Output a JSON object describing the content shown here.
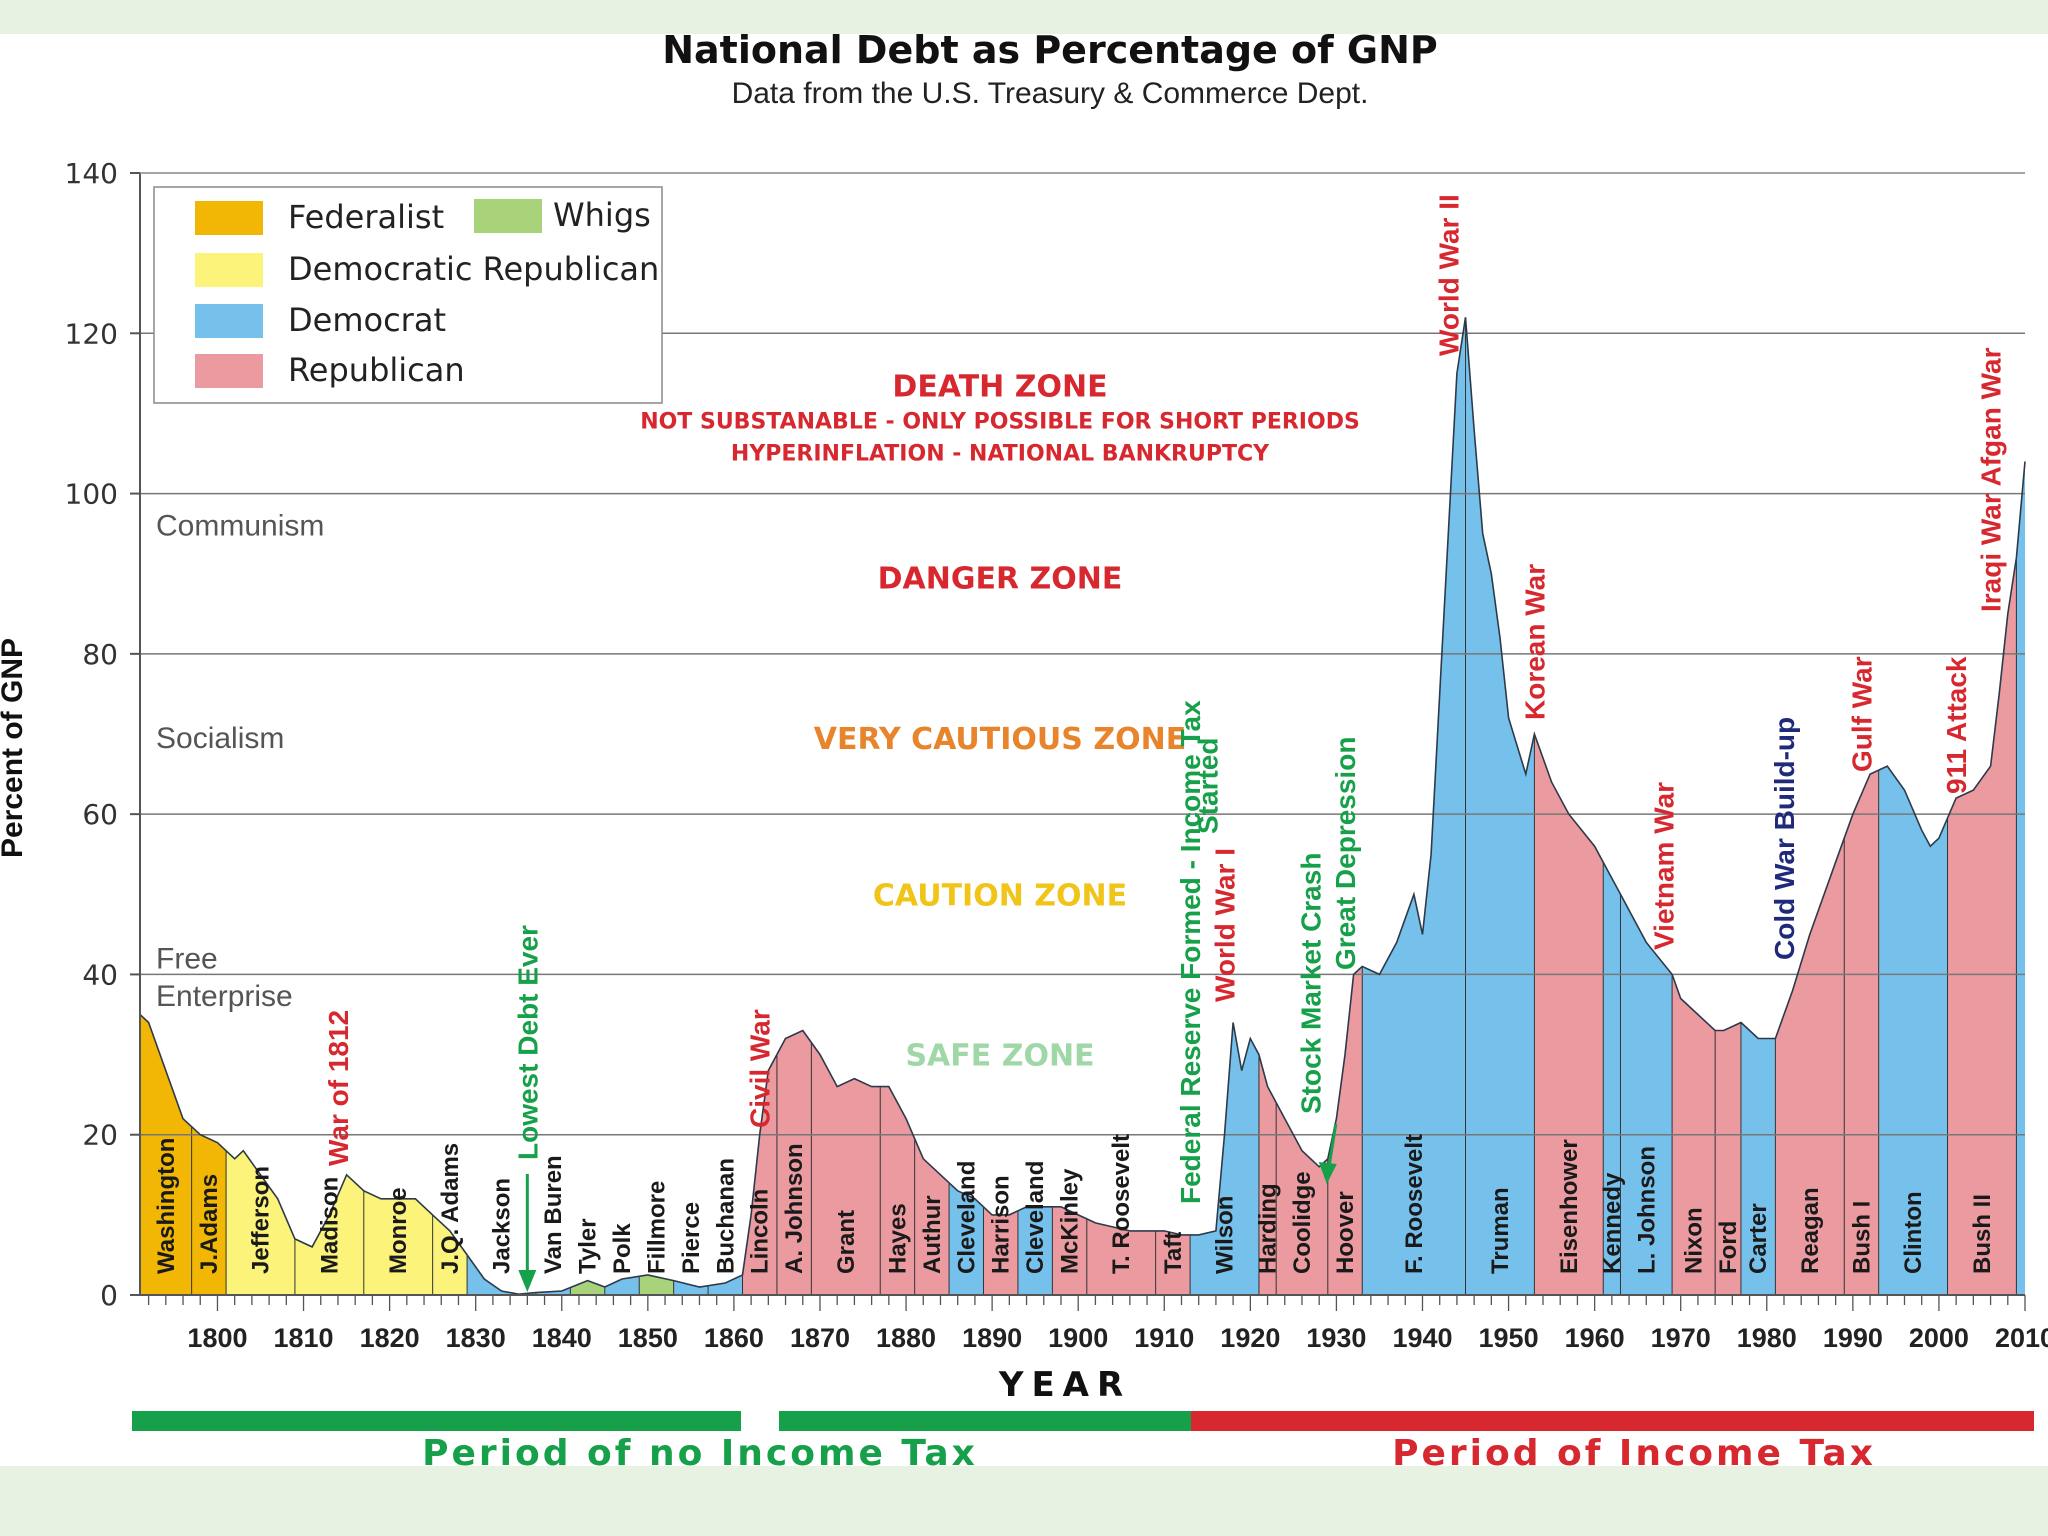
{
  "colors": {
    "federalist": "#f2b705",
    "dem_republican": "#fbf37a",
    "democrat": "#76c1ec",
    "republican": "#eb9aa0",
    "whigs": "#a8d37a",
    "danger_red": "#d7282f",
    "orange": "#e8842c",
    "caution_yellow": "#f0c419",
    "safe_green": "#9fd7a6",
    "event_green": "#16a049",
    "event_navy": "#1f2a7a"
  },
  "chart_data": {
    "type": "area",
    "title": "National Debt as Percentage of GNP",
    "subtitle": "Data from the U.S. Treasury & Commerce Dept.",
    "xlabel": "YEAR",
    "ylabel": "Percent of GNP",
    "xlim": [
      1791,
      2010
    ],
    "ylim": [
      0,
      140
    ],
    "x_ticks": [
      1800,
      1810,
      1820,
      1830,
      1840,
      1850,
      1860,
      1870,
      1880,
      1890,
      1900,
      1910,
      1920,
      1930,
      1940,
      1950,
      1960,
      1970,
      1980,
      1990,
      2000,
      "2010"
    ],
    "y_ticks": [
      0,
      20,
      40,
      60,
      80,
      100,
      120,
      140
    ],
    "grid": "horizontal",
    "legend_position": "top-left",
    "legend": [
      {
        "label": "Federalist",
        "color_key": "federalist"
      },
      {
        "label": "Whigs",
        "color_key": "whigs"
      },
      {
        "label": "Democratic Republican",
        "color_key": "dem_republican"
      },
      {
        "label": "Democrat",
        "color_key": "democrat"
      },
      {
        "label": "Republican",
        "color_key": "republican"
      }
    ],
    "series": [
      {
        "points": [
          [
            1791,
            35
          ],
          [
            1792,
            34
          ],
          [
            1794,
            28
          ],
          [
            1796,
            22
          ],
          [
            1798,
            20
          ],
          [
            1800,
            19
          ],
          [
            1802,
            17
          ],
          [
            1803,
            18
          ],
          [
            1805,
            15
          ],
          [
            1807,
            12
          ],
          [
            1809,
            7
          ],
          [
            1811,
            6
          ],
          [
            1813,
            10
          ],
          [
            1815,
            15
          ],
          [
            1817,
            13
          ],
          [
            1819,
            12
          ],
          [
            1821,
            12
          ],
          [
            1823,
            12
          ],
          [
            1825,
            10
          ],
          [
            1827,
            8
          ],
          [
            1829,
            5
          ],
          [
            1831,
            2
          ],
          [
            1833,
            0.5
          ],
          [
            1835,
            0.1
          ],
          [
            1837,
            0.3
          ],
          [
            1840,
            0.5
          ],
          [
            1843,
            1.8
          ],
          [
            1845,
            1
          ],
          [
            1847,
            2
          ],
          [
            1850,
            2.5
          ],
          [
            1853,
            1.8
          ],
          [
            1856,
            1
          ],
          [
            1859,
            1.5
          ],
          [
            1861,
            2.5
          ],
          [
            1862,
            10
          ],
          [
            1863,
            20
          ],
          [
            1864,
            28
          ],
          [
            1866,
            32
          ],
          [
            1868,
            33
          ],
          [
            1870,
            30
          ],
          [
            1872,
            26
          ],
          [
            1874,
            27
          ],
          [
            1876,
            26
          ],
          [
            1878,
            26
          ],
          [
            1880,
            22
          ],
          [
            1882,
            17
          ],
          [
            1884,
            15
          ],
          [
            1886,
            13
          ],
          [
            1888,
            12
          ],
          [
            1890,
            10
          ],
          [
            1892,
            10
          ],
          [
            1894,
            11
          ],
          [
            1896,
            11
          ],
          [
            1898,
            11
          ],
          [
            1900,
            10
          ],
          [
            1902,
            9
          ],
          [
            1904,
            8.5
          ],
          [
            1906,
            8
          ],
          [
            1908,
            8
          ],
          [
            1910,
            8
          ],
          [
            1912,
            7.5
          ],
          [
            1914,
            7.5
          ],
          [
            1916,
            8
          ],
          [
            1917,
            20
          ],
          [
            1918,
            34
          ],
          [
            1919,
            28
          ],
          [
            1920,
            32
          ],
          [
            1921,
            30
          ],
          [
            1922,
            26
          ],
          [
            1924,
            22
          ],
          [
            1926,
            18
          ],
          [
            1928,
            16
          ],
          [
            1929,
            17
          ],
          [
            1930,
            22
          ],
          [
            1931,
            30
          ],
          [
            1932,
            40
          ],
          [
            1933,
            41
          ],
          [
            1935,
            40
          ],
          [
            1937,
            44
          ],
          [
            1939,
            50
          ],
          [
            1940,
            45
          ],
          [
            1941,
            55
          ],
          [
            1942,
            75
          ],
          [
            1943,
            95
          ],
          [
            1944,
            115
          ],
          [
            1945,
            122
          ],
          [
            1946,
            108
          ],
          [
            1947,
            95
          ],
          [
            1948,
            90
          ],
          [
            1949,
            82
          ],
          [
            1950,
            72
          ],
          [
            1952,
            65
          ],
          [
            1953,
            70
          ],
          [
            1955,
            64
          ],
          [
            1957,
            60
          ],
          [
            1960,
            56
          ],
          [
            1963,
            50
          ],
          [
            1966,
            44
          ],
          [
            1969,
            40
          ],
          [
            1970,
            37
          ],
          [
            1972,
            35
          ],
          [
            1974,
            33
          ],
          [
            1975,
            33
          ],
          [
            1977,
            34
          ],
          [
            1979,
            32
          ],
          [
            1981,
            32
          ],
          [
            1983,
            38
          ],
          [
            1985,
            45
          ],
          [
            1988,
            54
          ],
          [
            1990,
            60
          ],
          [
            1992,
            65
          ],
          [
            1994,
            66
          ],
          [
            1996,
            63
          ],
          [
            1998,
            58
          ],
          [
            1999,
            56
          ],
          [
            2000,
            57
          ],
          [
            2002,
            62
          ],
          [
            2004,
            63
          ],
          [
            2006,
            66
          ],
          [
            2007,
            75
          ],
          [
            2008,
            85
          ],
          [
            2009,
            92
          ],
          [
            2010,
            104
          ]
        ]
      }
    ],
    "party_eras": [
      {
        "start": 1789,
        "end": 1797,
        "party": "federalist",
        "president": "Washington"
      },
      {
        "start": 1797,
        "end": 1801,
        "party": "federalist",
        "president": "J.Adams"
      },
      {
        "start": 1801,
        "end": 1809,
        "party": "dem_republican",
        "president": "Jefferson"
      },
      {
        "start": 1809,
        "end": 1817,
        "party": "dem_republican",
        "president": "Madison"
      },
      {
        "start": 1817,
        "end": 1825,
        "party": "dem_republican",
        "president": "Monroe"
      },
      {
        "start": 1825,
        "end": 1829,
        "party": "dem_republican",
        "president": "J.Q. Adams"
      },
      {
        "start": 1829,
        "end": 1837,
        "party": "democrat",
        "president": "Jackson"
      },
      {
        "start": 1837,
        "end": 1841,
        "party": "democrat",
        "president": "Van Buren"
      },
      {
        "start": 1841,
        "end": 1845,
        "party": "whigs",
        "president": "Tyler"
      },
      {
        "start": 1845,
        "end": 1849,
        "party": "democrat",
        "president": "Polk"
      },
      {
        "start": 1849,
        "end": 1853,
        "party": "whigs",
        "president": "Fillmore"
      },
      {
        "start": 1853,
        "end": 1857,
        "party": "democrat",
        "president": "Pierce"
      },
      {
        "start": 1857,
        "end": 1861,
        "party": "democrat",
        "president": "Buchanan"
      },
      {
        "start": 1861,
        "end": 1865,
        "party": "republican",
        "president": "Lincoln"
      },
      {
        "start": 1865,
        "end": 1869,
        "party": "republican",
        "president": "A. Johnson"
      },
      {
        "start": 1869,
        "end": 1877,
        "party": "republican",
        "president": "Grant"
      },
      {
        "start": 1877,
        "end": 1881,
        "party": "republican",
        "president": "Hayes"
      },
      {
        "start": 1881,
        "end": 1885,
        "party": "republican",
        "president": "Authur"
      },
      {
        "start": 1885,
        "end": 1889,
        "party": "democrat",
        "president": "Cleveland"
      },
      {
        "start": 1889,
        "end": 1893,
        "party": "republican",
        "president": "Harrison"
      },
      {
        "start": 1893,
        "end": 1897,
        "party": "democrat",
        "president": "Cleveland"
      },
      {
        "start": 1897,
        "end": 1901,
        "party": "republican",
        "president": "McKinley"
      },
      {
        "start": 1901,
        "end": 1909,
        "party": "republican",
        "president": "T. Roosevelt"
      },
      {
        "start": 1909,
        "end": 1913,
        "party": "republican",
        "president": "Taft"
      },
      {
        "start": 1913,
        "end": 1921,
        "party": "democrat",
        "president": "Wilson"
      },
      {
        "start": 1921,
        "end": 1923,
        "party": "republican",
        "president": "Harding"
      },
      {
        "start": 1923,
        "end": 1929,
        "party": "republican",
        "president": "Coolidge"
      },
      {
        "start": 1929,
        "end": 1933,
        "party": "republican",
        "president": "Hoover"
      },
      {
        "start": 1933,
        "end": 1945,
        "party": "democrat",
        "president": "F. Roosevelt"
      },
      {
        "start": 1945,
        "end": 1953,
        "party": "democrat",
        "president": "Truman"
      },
      {
        "start": 1953,
        "end": 1961,
        "party": "republican",
        "president": "Eisenhower"
      },
      {
        "start": 1961,
        "end": 1963,
        "party": "democrat",
        "president": "Kennedy"
      },
      {
        "start": 1963,
        "end": 1969,
        "party": "democrat",
        "president": "L. Johnson"
      },
      {
        "start": 1969,
        "end": 1974,
        "party": "republican",
        "president": "Nixon"
      },
      {
        "start": 1974,
        "end": 1977,
        "party": "republican",
        "president": "Ford"
      },
      {
        "start": 1977,
        "end": 1981,
        "party": "democrat",
        "president": "Carter"
      },
      {
        "start": 1981,
        "end": 1989,
        "party": "republican",
        "president": "Reagan"
      },
      {
        "start": 1989,
        "end": 1993,
        "party": "republican",
        "president": "Bush I"
      },
      {
        "start": 1993,
        "end": 2001,
        "party": "democrat",
        "president": "Clinton"
      },
      {
        "start": 2001,
        "end": 2009,
        "party": "republican",
        "president": "Bush II"
      },
      {
        "start": 2009,
        "end": 2011,
        "party": "democrat",
        "president": ""
      }
    ],
    "zones": [
      {
        "label": "DEATH ZONE",
        "y": 113.5,
        "color_key": "danger_red"
      },
      {
        "label": "DANGER ZONE",
        "y": 89.5,
        "color_key": "danger_red"
      },
      {
        "label": "VERY CAUTIOUS ZONE",
        "y": 69.5,
        "color_key": "orange"
      },
      {
        "label": "CAUTION ZONE",
        "y": 50,
        "color_key": "caution_yellow"
      },
      {
        "label": "SAFE ZONE",
        "y": 30,
        "color_key": "safe_green"
      }
    ],
    "zone_notes": [
      "NOT SUBSTANABLE - ONLY POSSIBLE FOR SHORT PERIODS",
      "HYPERINFLATION - NATIONAL BANKRUPTCY"
    ],
    "ideologies": [
      {
        "label": "Communism",
        "y": 96
      },
      {
        "label": "Socialism",
        "y": 69.5
      },
      {
        "label": "Free",
        "y": 42
      },
      {
        "label": "Enterprise",
        "y": 37.3
      }
    ],
    "events": [
      {
        "label": "War of 1812",
        "x": 1814,
        "color_key": "danger_red"
      },
      {
        "label": "Lowest Debt Ever",
        "x": 1836,
        "color_key": "event_green"
      },
      {
        "label": "Civil War",
        "x": 1863,
        "color_key": "danger_red"
      },
      {
        "label": "Federal Reserve Formed - Income Tax",
        "x": 1913,
        "color_key": "event_green"
      },
      {
        "label": "Started",
        "x": 1915,
        "color_key": "event_green"
      },
      {
        "label": "World War I",
        "x": 1917,
        "color_key": "danger_red"
      },
      {
        "label": "Stock Market Crash",
        "x": 1927,
        "color_key": "event_green"
      },
      {
        "label": "Great Depression",
        "x": 1931,
        "color_key": "event_green"
      },
      {
        "label": "World War II",
        "x": 1943,
        "color_key": "danger_red"
      },
      {
        "label": "Korean War",
        "x": 1953,
        "color_key": "danger_red"
      },
      {
        "label": "Vietnam War",
        "x": 1968,
        "color_key": "danger_red"
      },
      {
        "label": "Cold War Build-up",
        "x": 1982,
        "color_key": "event_navy"
      },
      {
        "label": "Gulf War",
        "x": 1991,
        "color_key": "danger_red"
      },
      {
        "label": "911 Attack",
        "x": 2002,
        "color_key": "danger_red"
      },
      {
        "label": "Iraqi War Afgan War",
        "x": 2006,
        "color_key": "danger_red"
      }
    ],
    "periods": [
      {
        "label": "Period of no Income Tax",
        "start": 1791,
        "end": 1913,
        "color_key": "event_green"
      },
      {
        "label": "Period of Income Tax",
        "start": 1913,
        "end": 2010,
        "color_key": "danger_red"
      }
    ]
  }
}
